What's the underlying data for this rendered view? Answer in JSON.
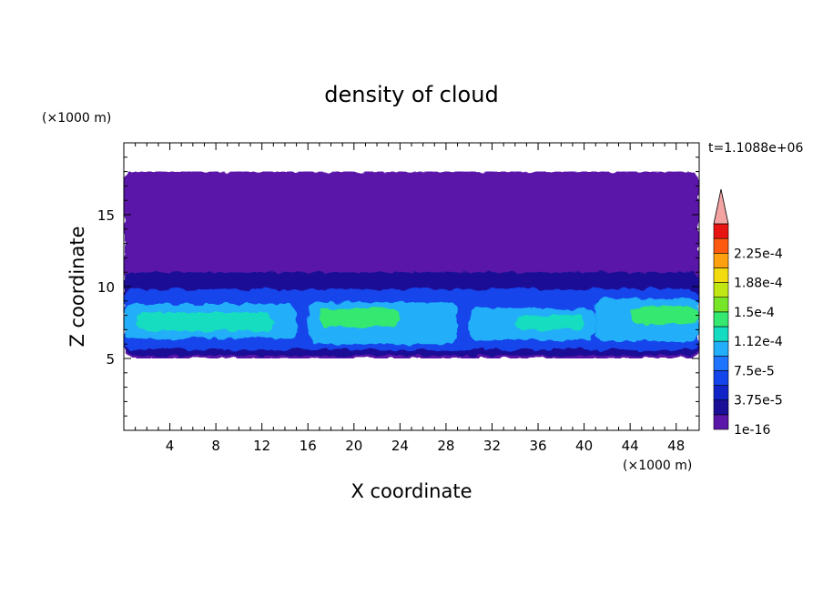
{
  "chart_data": {
    "type": "heatmap",
    "title": "density of cloud",
    "xlabel": "X coordinate",
    "ylabel": "Z coordinate",
    "x_unit": "(×1000 m)",
    "y_unit": "(×1000 m)",
    "time_label": "t=1.1088e+06",
    "xlim": [
      0,
      50
    ],
    "ylim": [
      0,
      20
    ],
    "x_ticks": [
      4,
      8,
      12,
      16,
      20,
      24,
      28,
      32,
      36,
      40,
      44,
      48
    ],
    "y_ticks": [
      5,
      10,
      15
    ],
    "colorbar": {
      "levels": [
        1e-16,
        1.875e-05,
        3.75e-05,
        5.625e-05,
        7.5e-05,
        9.375e-05,
        0.0001125,
        0.00013125,
        0.00015,
        0.00016875,
        0.0001875,
        0.00020625,
        0.000225,
        0.00024375
      ],
      "labels": [
        "1e-16",
        "3.75e-5",
        "7.5e-5",
        "1.12e-4",
        "1.5e-4",
        "1.88e-4",
        "2.25e-4"
      ],
      "colors": [
        "#5a16a8",
        "#1a0f96",
        "#1024c8",
        "#1444ec",
        "#1e74ff",
        "#22aef8",
        "#14dcc0",
        "#34e870",
        "#78e628",
        "#c0e614",
        "#f2dc10",
        "#ffa010",
        "#ff5a10",
        "#e81414"
      ],
      "extend_color": "#f4a3a3"
    },
    "regions": [
      {
        "level": 0,
        "x": [
          0,
          50
        ],
        "z": [
          5.0,
          18.0
        ]
      },
      {
        "level": 1,
        "x": [
          0,
          50
        ],
        "z": [
          5.2,
          11.0
        ]
      },
      {
        "level": 3,
        "x": [
          0,
          50
        ],
        "z": [
          5.6,
          9.8
        ]
      },
      {
        "level": 5,
        "x": [
          0,
          15
        ],
        "z": [
          6.4,
          8.8
        ]
      },
      {
        "level": 6,
        "x": [
          1,
          13
        ],
        "z": [
          6.9,
          8.2
        ]
      },
      {
        "level": 5,
        "x": [
          16,
          29
        ],
        "z": [
          6.0,
          8.9
        ]
      },
      {
        "level": 7,
        "x": [
          17,
          24
        ],
        "z": [
          7.2,
          8.5
        ]
      },
      {
        "level": 5,
        "x": [
          30,
          41
        ],
        "z": [
          6.3,
          8.5
        ]
      },
      {
        "level": 6,
        "x": [
          34,
          40
        ],
        "z": [
          7.0,
          8.0
        ]
      },
      {
        "level": 5,
        "x": [
          41,
          50
        ],
        "z": [
          6.2,
          9.2
        ]
      },
      {
        "level": 7,
        "x": [
          44,
          50
        ],
        "z": [
          7.4,
          8.6
        ]
      }
    ]
  }
}
